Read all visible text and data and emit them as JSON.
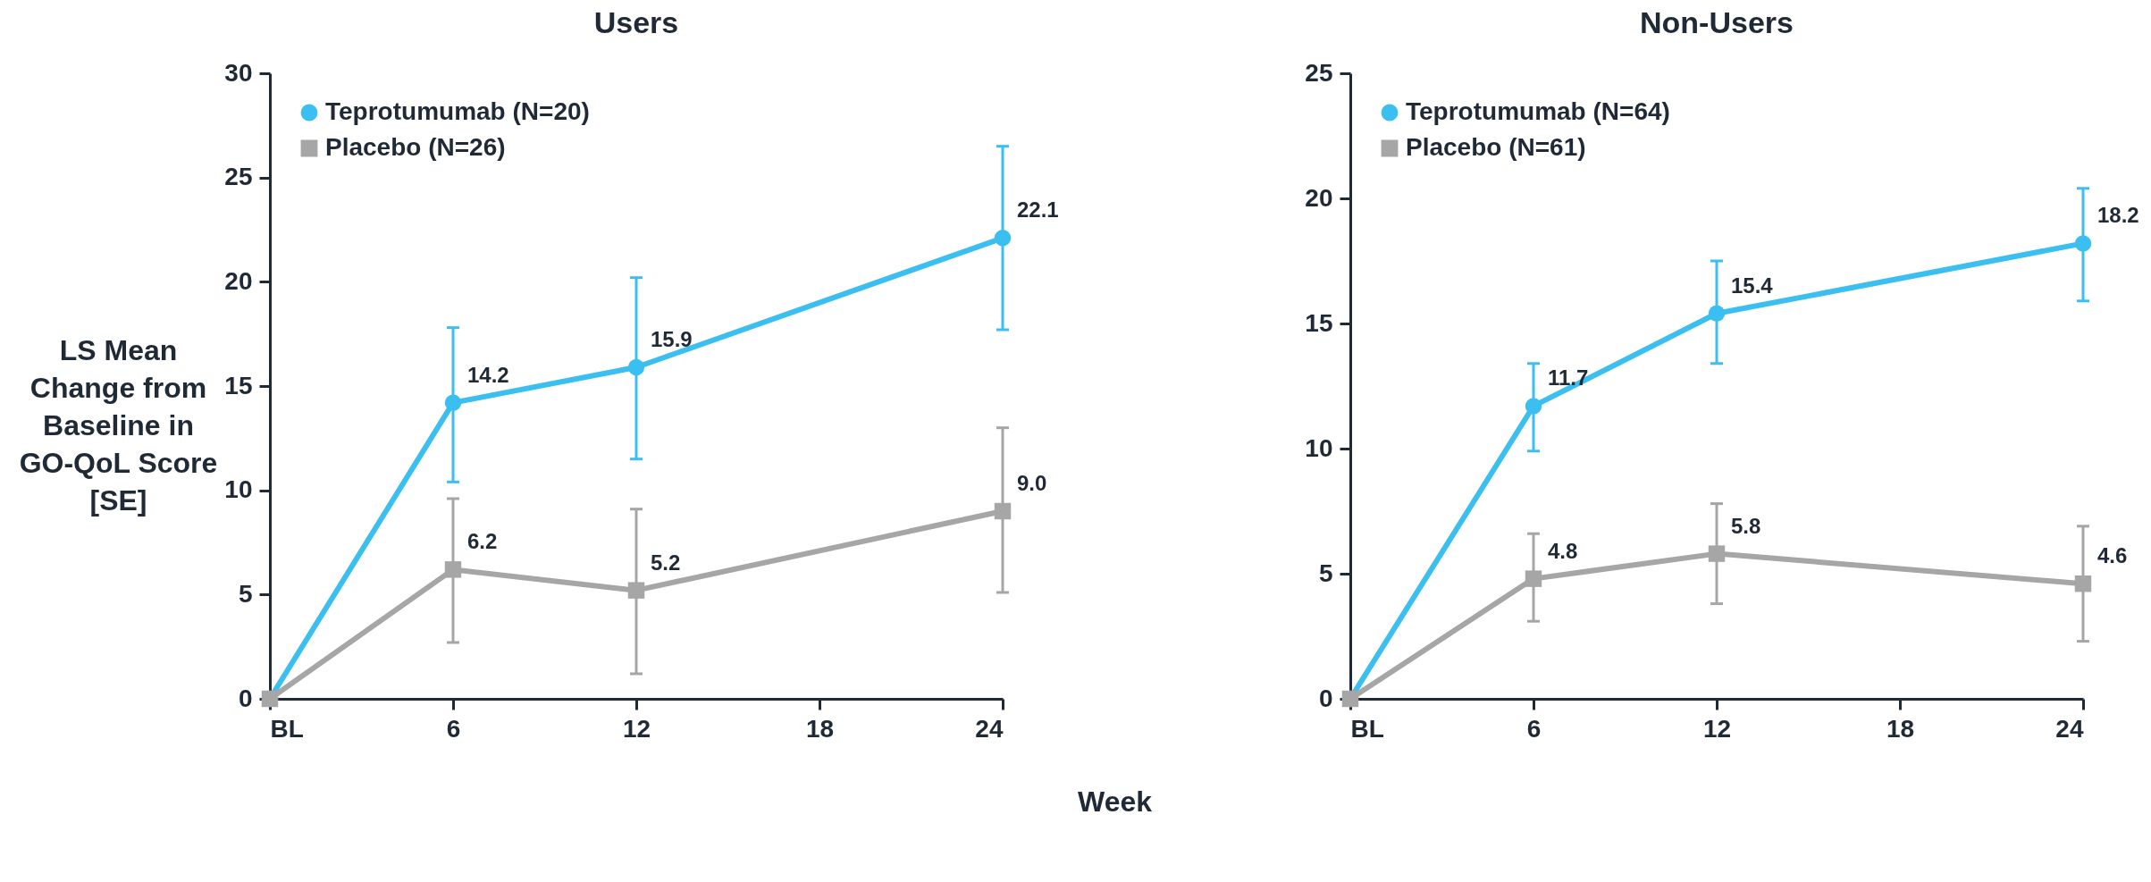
{
  "chart_data": [
    {
      "type": "line",
      "title": "Users",
      "ylabel": "LS Mean Change from Baseline in GO-QoL Score [SE]",
      "xlabel": "Week",
      "x": [
        0,
        6,
        12,
        24
      ],
      "xlim": [
        0,
        24
      ],
      "xticks": [
        {
          "value": 0,
          "label": "BL"
        },
        6,
        12,
        18,
        24
      ],
      "ylim": [
        0,
        30
      ],
      "yticks": [
        0,
        5,
        10,
        15,
        20,
        25,
        30
      ],
      "grid": false,
      "legend": "top left",
      "series": [
        {
          "name": "Teprotumumab (N=20)",
          "color": "#3bbff0",
          "marker": "circle",
          "values": [
            0,
            14.2,
            15.9,
            22.1
          ],
          "errors": [
            null,
            [
              10.4,
              17.8
            ],
            [
              11.5,
              20.2
            ],
            [
              17.7,
              26.5
            ]
          ],
          "value_labels": [
            null,
            "14.2",
            "15.9",
            "22.1"
          ]
        },
        {
          "name": "Placebo (N=26)",
          "color": "#a6a6a6",
          "marker": "square",
          "values": [
            0,
            6.2,
            5.2,
            9.0
          ],
          "errors": [
            null,
            [
              2.7,
              9.6
            ],
            [
              1.2,
              9.1
            ],
            [
              5.1,
              13.0
            ]
          ],
          "value_labels": [
            null,
            "6.2",
            "5.2",
            "9.0"
          ]
        }
      ]
    },
    {
      "type": "line",
      "title": "Non-Users",
      "x": [
        0,
        6,
        12,
        24
      ],
      "xlim": [
        0,
        24
      ],
      "xticks": [
        {
          "value": 0,
          "label": "BL"
        },
        6,
        12,
        18,
        24
      ],
      "ylim": [
        0,
        25
      ],
      "yticks": [
        0,
        5,
        10,
        15,
        20,
        25
      ],
      "grid": false,
      "legend": "top left",
      "series": [
        {
          "name": "Teprotumumab (N=64)",
          "color": "#3bbff0",
          "marker": "circle",
          "values": [
            0,
            11.7,
            15.4,
            18.2
          ],
          "errors": [
            null,
            [
              9.9,
              13.4
            ],
            [
              13.4,
              17.5
            ],
            [
              15.9,
              20.4
            ]
          ],
          "value_labels": [
            null,
            "11.7",
            "15.4",
            "18.2"
          ]
        },
        {
          "name": "Placebo (N=61)",
          "color": "#a6a6a6",
          "marker": "square",
          "values": [
            0,
            4.8,
            5.8,
            4.6
          ],
          "errors": [
            null,
            [
              3.1,
              6.6
            ],
            [
              3.8,
              7.8
            ],
            [
              2.3,
              6.9
            ]
          ],
          "value_labels": [
            null,
            "4.8",
            "5.8",
            "4.6"
          ]
        }
      ]
    }
  ]
}
